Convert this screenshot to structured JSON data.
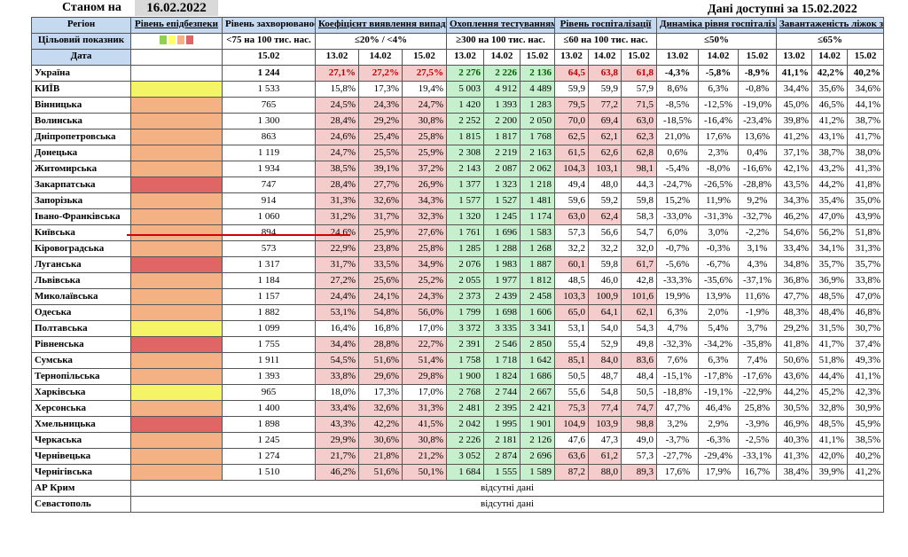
{
  "header": {
    "as_of_label": "Станом на",
    "as_of_date": "16.02.2022",
    "data_available": "Дані доступні за 15.02.2022"
  },
  "columns": {
    "region": "Регіон",
    "epi_level": "Рівень епідбезпеки",
    "incidence": "Рівень захворюваності",
    "detection": "Коефіцієнт виявлення випадків інфікування",
    "testing": "Охоплення тестуванням",
    "hosp": "Рівень госпіталізації",
    "hosp_dynamics": "Динаміка рівня госпіталізації",
    "oxygen": "Завантаженість ліжок з киснем"
  },
  "targets": {
    "label": "Цільовий показник",
    "incidence": "<75 на 100 тис. нас.",
    "detection": "≤20% / <4%",
    "testing": "≥300 на 100 тис. нас.",
    "hosp": "≤60 на 100 тис. нас.",
    "hosp_dynamics": "≤50%",
    "oxygen": "≤65%"
  },
  "level_colors": [
    "#92d050",
    "#ffff66",
    "#f4b183",
    "#e06666"
  ],
  "date_row": {
    "label": "Дата",
    "incidence_date": "15.02",
    "dates": [
      "13.02",
      "14.02",
      "15.02"
    ]
  },
  "rows": [
    {
      "region": "Україна",
      "level": "",
      "inc": "1 244",
      "det": [
        "27,1%",
        "27,2%",
        "27,5%"
      ],
      "tst": [
        "2 276",
        "2 226",
        "2 136"
      ],
      "hsp": [
        "64,5",
        "63,8",
        "61,8"
      ],
      "dyn": [
        "-4,3%",
        "-5,8%",
        "-8,9%"
      ],
      "oxy": [
        "41,1%",
        "42,2%",
        "40,2%"
      ],
      "bold": true
    },
    {
      "region": "КИЇВ",
      "level": "#f4f466",
      "inc": "1 533",
      "det": [
        "15,8%",
        "17,3%",
        "19,4%"
      ],
      "tst": [
        "5 003",
        "4 912",
        "4 489"
      ],
      "hsp": [
        "59,9",
        "59,9",
        "57,9"
      ],
      "dyn": [
        "8,6%",
        "6,3%",
        "-0,8%"
      ],
      "oxy": [
        "34,4%",
        "35,6%",
        "34,6%"
      ]
    },
    {
      "region": "Вінницька",
      "level": "#f4b183",
      "inc": "765",
      "det": [
        "24,5%",
        "24,3%",
        "24,7%"
      ],
      "tst": [
        "1 420",
        "1 393",
        "1 283"
      ],
      "hsp": [
        "79,5",
        "77,2",
        "71,5"
      ],
      "dyn": [
        "-8,5%",
        "-12,5%",
        "-19,0%"
      ],
      "oxy": [
        "45,0%",
        "46,5%",
        "44,1%"
      ]
    },
    {
      "region": "Волинська",
      "level": "#f4b183",
      "inc": "1 300",
      "det": [
        "28,4%",
        "29,2%",
        "30,8%"
      ],
      "tst": [
        "2 252",
        "2 200",
        "2 050"
      ],
      "hsp": [
        "70,0",
        "69,4",
        "63,0"
      ],
      "dyn": [
        "-18,5%",
        "-16,4%",
        "-23,4%"
      ],
      "oxy": [
        "39,8%",
        "41,2%",
        "38,7%"
      ]
    },
    {
      "region": "Дніпропетровська",
      "level": "#f4b183",
      "inc": "863",
      "det": [
        "24,6%",
        "25,4%",
        "25,8%"
      ],
      "tst": [
        "1 815",
        "1 817",
        "1 768"
      ],
      "hsp": [
        "62,5",
        "62,1",
        "62,3"
      ],
      "dyn": [
        "21,0%",
        "17,6%",
        "13,6%"
      ],
      "oxy": [
        "41,2%",
        "43,1%",
        "41,7%"
      ]
    },
    {
      "region": "Донецька",
      "level": "#f4b183",
      "inc": "1 119",
      "det": [
        "24,7%",
        "25,5%",
        "25,9%"
      ],
      "tst": [
        "2 308",
        "2 219",
        "2 163"
      ],
      "hsp": [
        "61,5",
        "62,6",
        "62,8"
      ],
      "dyn": [
        "0,6%",
        "2,3%",
        "0,4%"
      ],
      "oxy": [
        "37,1%",
        "38,7%",
        "38,0%"
      ]
    },
    {
      "region": "Житомирська",
      "level": "#f4b183",
      "inc": "1 934",
      "det": [
        "38,5%",
        "39,1%",
        "37,2%"
      ],
      "tst": [
        "2 143",
        "2 087",
        "2 062"
      ],
      "hsp": [
        "104,3",
        "103,1",
        "98,1"
      ],
      "dyn": [
        "-5,4%",
        "-8,0%",
        "-16,6%"
      ],
      "oxy": [
        "42,1%",
        "43,2%",
        "41,3%"
      ]
    },
    {
      "region": "Закарпатська",
      "level": "#e06666",
      "inc": "747",
      "det": [
        "28,4%",
        "27,7%",
        "26,9%"
      ],
      "tst": [
        "1 377",
        "1 323",
        "1 218"
      ],
      "hsp": [
        "49,4",
        "48,0",
        "44,3"
      ],
      "dyn": [
        "-24,7%",
        "-26,5%",
        "-28,8%"
      ],
      "oxy": [
        "43,5%",
        "44,2%",
        "41,8%"
      ]
    },
    {
      "region": "Запорізька",
      "level": "#f4b183",
      "inc": "914",
      "det": [
        "31,3%",
        "32,6%",
        "34,3%"
      ],
      "tst": [
        "1 577",
        "1 527",
        "1 481"
      ],
      "hsp": [
        "59,6",
        "59,2",
        "59,8"
      ],
      "dyn": [
        "15,2%",
        "11,9%",
        "9,2%"
      ],
      "oxy": [
        "34,3%",
        "35,4%",
        "35,0%"
      ]
    },
    {
      "region": "Івано-Франківська",
      "level": "#f4b183",
      "inc": "1 060",
      "det": [
        "31,2%",
        "31,7%",
        "32,3%"
      ],
      "tst": [
        "1 320",
        "1 245",
        "1 174"
      ],
      "hsp": [
        "63,0",
        "62,4",
        "58,3"
      ],
      "dyn": [
        "-33,0%",
        "-31,3%",
        "-32,7%"
      ],
      "oxy": [
        "46,2%",
        "47,0%",
        "43,9%"
      ]
    },
    {
      "region": "Київська",
      "level": "#f4b183",
      "inc": "894",
      "det": [
        "24,6%",
        "25,9%",
        "27,6%"
      ],
      "tst": [
        "1 761",
        "1 696",
        "1 583"
      ],
      "hsp": [
        "57,3",
        "56,6",
        "54,7"
      ],
      "dyn": [
        "6,0%",
        "3,0%",
        "-2,2%"
      ],
      "oxy": [
        "54,6%",
        "56,2%",
        "51,8%"
      ]
    },
    {
      "region": "Кіровоградська",
      "level": "#f4b183",
      "inc": "573",
      "det": [
        "22,9%",
        "23,8%",
        "25,8%"
      ],
      "tst": [
        "1 285",
        "1 288",
        "1 268"
      ],
      "hsp": [
        "32,2",
        "32,2",
        "32,0"
      ],
      "dyn": [
        "-0,7%",
        "-0,3%",
        "3,1%"
      ],
      "oxy": [
        "33,4%",
        "34,1%",
        "31,3%"
      ]
    },
    {
      "region": "Луганська",
      "level": "#e06666",
      "inc": "1 317",
      "det": [
        "31,7%",
        "33,5%",
        "34,9%"
      ],
      "tst": [
        "2 076",
        "1 983",
        "1 887"
      ],
      "hsp": [
        "60,1",
        "59,8",
        "61,7"
      ],
      "dyn": [
        "-5,6%",
        "-6,7%",
        "4,3%"
      ],
      "oxy": [
        "34,8%",
        "35,7%",
        "35,7%"
      ]
    },
    {
      "region": "Львівська",
      "level": "#f4b183",
      "inc": "1 184",
      "det": [
        "27,2%",
        "25,6%",
        "25,2%"
      ],
      "tst": [
        "2 055",
        "1 977",
        "1 812"
      ],
      "hsp": [
        "48,5",
        "46,0",
        "42,8"
      ],
      "dyn": [
        "-33,3%",
        "-35,6%",
        "-37,1%"
      ],
      "oxy": [
        "36,8%",
        "36,9%",
        "33,8%"
      ]
    },
    {
      "region": "Миколаївська",
      "level": "#f4b183",
      "inc": "1 157",
      "det": [
        "24,4%",
        "24,1%",
        "24,3%"
      ],
      "tst": [
        "2 373",
        "2 439",
        "2 458"
      ],
      "hsp": [
        "103,3",
        "100,9",
        "101,6"
      ],
      "dyn": [
        "19,9%",
        "13,9%",
        "11,6%"
      ],
      "oxy": [
        "47,7%",
        "48,5%",
        "47,0%"
      ]
    },
    {
      "region": "Одеська",
      "level": "#f4b183",
      "inc": "1 882",
      "det": [
        "53,1%",
        "54,8%",
        "56,0%"
      ],
      "tst": [
        "1 799",
        "1 698",
        "1 606"
      ],
      "hsp": [
        "65,0",
        "64,1",
        "62,1"
      ],
      "dyn": [
        "6,3%",
        "2,0%",
        "-1,9%"
      ],
      "oxy": [
        "48,3%",
        "48,4%",
        "46,8%"
      ]
    },
    {
      "region": "Полтавська",
      "level": "#f4f466",
      "inc": "1 099",
      "det": [
        "16,4%",
        "16,8%",
        "17,0%"
      ],
      "tst": [
        "3 372",
        "3 335",
        "3 341"
      ],
      "hsp": [
        "53,1",
        "54,0",
        "54,3"
      ],
      "dyn": [
        "4,7%",
        "5,4%",
        "3,7%"
      ],
      "oxy": [
        "29,2%",
        "31,5%",
        "30,7%"
      ]
    },
    {
      "region": "Рівненська",
      "level": "#e06666",
      "inc": "1 755",
      "det": [
        "34,4%",
        "28,8%",
        "22,7%"
      ],
      "tst": [
        "2 391",
        "2 546",
        "2 850"
      ],
      "hsp": [
        "55,4",
        "52,9",
        "49,8"
      ],
      "dyn": [
        "-32,3%",
        "-34,2%",
        "-35,8%"
      ],
      "oxy": [
        "41,8%",
        "41,7%",
        "37,4%"
      ]
    },
    {
      "region": "Сумська",
      "level": "#f4b183",
      "inc": "1 911",
      "det": [
        "54,5%",
        "51,6%",
        "51,4%"
      ],
      "tst": [
        "1 758",
        "1 718",
        "1 642"
      ],
      "hsp": [
        "85,1",
        "84,0",
        "83,6"
      ],
      "dyn": [
        "7,6%",
        "6,3%",
        "7,4%"
      ],
      "oxy": [
        "50,6%",
        "51,8%",
        "49,3%"
      ]
    },
    {
      "region": "Тернопільська",
      "level": "#f4b183",
      "inc": "1 393",
      "det": [
        "33,8%",
        "29,6%",
        "29,8%"
      ],
      "tst": [
        "1 900",
        "1 824",
        "1 686"
      ],
      "hsp": [
        "50,5",
        "48,7",
        "48,4"
      ],
      "dyn": [
        "-15,1%",
        "-17,8%",
        "-17,6%"
      ],
      "oxy": [
        "43,6%",
        "44,4%",
        "41,1%"
      ]
    },
    {
      "region": "Харківська",
      "level": "#f4f466",
      "inc": "965",
      "det": [
        "18,0%",
        "17,3%",
        "17,0%"
      ],
      "tst": [
        "2 768",
        "2 744",
        "2 667"
      ],
      "hsp": [
        "55,6",
        "54,8",
        "50,5"
      ],
      "dyn": [
        "-18,8%",
        "-19,1%",
        "-22,9%"
      ],
      "oxy": [
        "44,2%",
        "45,2%",
        "42,3%"
      ]
    },
    {
      "region": "Херсонська",
      "level": "#f4b183",
      "inc": "1 400",
      "det": [
        "33,4%",
        "32,6%",
        "31,3%"
      ],
      "tst": [
        "2 481",
        "2 395",
        "2 421"
      ],
      "hsp": [
        "75,3",
        "77,4",
        "74,7"
      ],
      "dyn": [
        "47,7%",
        "46,4%",
        "25,8%"
      ],
      "oxy": [
        "30,5%",
        "32,8%",
        "30,9%"
      ]
    },
    {
      "region": "Хмельницька",
      "level": "#e06666",
      "inc": "1 898",
      "det": [
        "43,3%",
        "42,2%",
        "41,5%"
      ],
      "tst": [
        "2 042",
        "1 995",
        "1 901"
      ],
      "hsp": [
        "104,9",
        "103,9",
        "98,8"
      ],
      "dyn": [
        "3,2%",
        "2,9%",
        "-3,9%"
      ],
      "oxy": [
        "46,9%",
        "48,5%",
        "45,9%"
      ]
    },
    {
      "region": "Черкаська",
      "level": "#f4b183",
      "inc": "1 245",
      "det": [
        "29,9%",
        "30,6%",
        "30,8%"
      ],
      "tst": [
        "2 226",
        "2 181",
        "2 126"
      ],
      "hsp": [
        "47,6",
        "47,3",
        "49,0"
      ],
      "dyn": [
        "-3,7%",
        "-6,3%",
        "-2,5%"
      ],
      "oxy": [
        "40,3%",
        "41,1%",
        "38,5%"
      ]
    },
    {
      "region": "Чернівецька",
      "level": "#f4b183",
      "inc": "1 274",
      "det": [
        "21,7%",
        "21,8%",
        "21,2%"
      ],
      "tst": [
        "3 052",
        "2 874",
        "2 696"
      ],
      "hsp": [
        "63,6",
        "61,2",
        "57,3"
      ],
      "dyn": [
        "-27,7%",
        "-29,4%",
        "-33,1%"
      ],
      "oxy": [
        "41,3%",
        "42,0%",
        "40,2%"
      ]
    },
    {
      "region": "Чернігівська",
      "level": "#f4b183",
      "inc": "1 510",
      "det": [
        "46,2%",
        "51,6%",
        "50,1%"
      ],
      "tst": [
        "1 684",
        "1 555",
        "1 589"
      ],
      "hsp": [
        "87,2",
        "88,0",
        "89,3"
      ],
      "dyn": [
        "17,6%",
        "17,9%",
        "16,7%"
      ],
      "oxy": [
        "38,4%",
        "39,9%",
        "41,2%"
      ]
    }
  ],
  "no_data_rows": [
    {
      "region": "АР Крим",
      "text": "відсутні дані"
    },
    {
      "region": "Севастополь",
      "text": "відсутні дані"
    }
  ]
}
